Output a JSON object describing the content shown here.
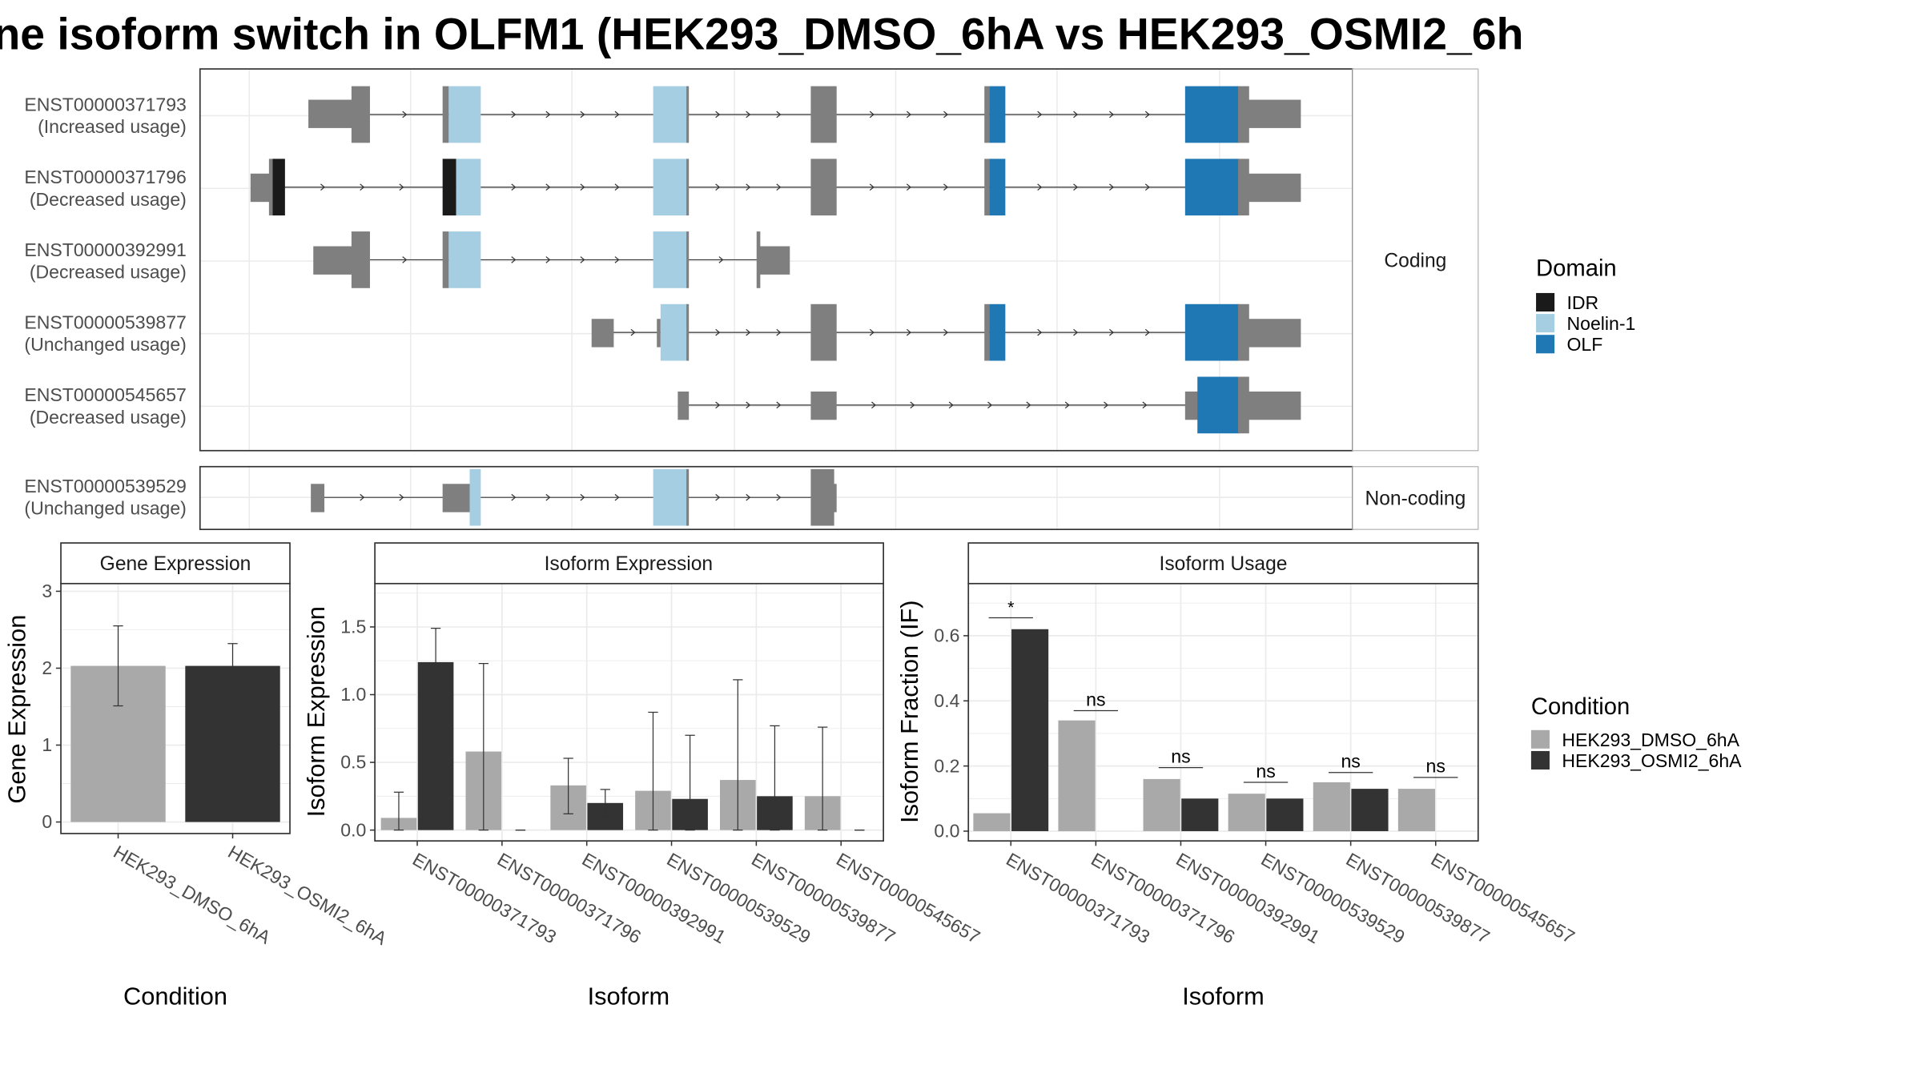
{
  "title": "ne isoform switch in OLFM1 (HEK293_DMSO_6hA vs HEK293_OSMI2_6h",
  "colors": {
    "idr": "#1a1a1a",
    "noelin": "#a6cee3",
    "olf": "#1f78b4",
    "exon": "#7f7f7f",
    "dmso": "#a9a9a9",
    "osmi": "#333333",
    "grid": "#ebebeb",
    "panel_border": "#333333",
    "strip_border": "#b3b3b3"
  },
  "structure": {
    "facets": [
      "Coding",
      "Non-coding"
    ],
    "transcripts": [
      {
        "id": "ENST00000371793",
        "usage": "(Increased usage)",
        "facet": "Coding"
      },
      {
        "id": "ENST00000371796",
        "usage": "(Decreased usage)",
        "facet": "Coding"
      },
      {
        "id": "ENST00000392991",
        "usage": "(Decreased usage)",
        "facet": "Coding"
      },
      {
        "id": "ENST00000539877",
        "usage": "(Unchanged usage)",
        "facet": "Coding"
      },
      {
        "id": "ENST00000545657",
        "usage": "(Decreased usage)",
        "facet": "Coding"
      },
      {
        "id": "ENST00000539529",
        "usage": "(Unchanged usage)",
        "facet": "Non-coding"
      }
    ]
  },
  "legends": {
    "domain": {
      "title": "Domain",
      "items": [
        "IDR",
        "Noelin-1",
        "OLF"
      ]
    },
    "condition": {
      "title": "Condition",
      "items": [
        "HEK293_DMSO_6hA",
        "HEK293_OSMI2_6hA"
      ]
    }
  },
  "chart_data": [
    {
      "type": "bar",
      "title": "Gene Expression",
      "xlabel": "Condition",
      "ylabel": "Gene Expression",
      "categories": [
        "HEK293_DMSO_6hA",
        "HEK293_OSMI2_6hA"
      ],
      "values": [
        2.03,
        2.03
      ],
      "error_low": [
        1.51,
        1.74
      ],
      "error_high": [
        2.55,
        2.32
      ],
      "ylim": [
        -0.15,
        3.1
      ],
      "yticks": [
        0,
        1,
        2,
        3
      ]
    },
    {
      "type": "bar",
      "title": "Isoform Expression",
      "xlabel": "Isoform",
      "ylabel": "Isoform Expression",
      "categories": [
        "ENST00000371793",
        "ENST00000371796",
        "ENST00000392991",
        "ENST00000539529",
        "ENST00000539877",
        "ENST00000545657"
      ],
      "series": [
        {
          "name": "HEK293_DMSO_6hA",
          "values": [
            0.09,
            0.58,
            0.33,
            0.29,
            0.37,
            0.25
          ],
          "error_low": [
            0,
            0,
            0.12,
            0,
            0,
            0
          ],
          "error_high": [
            0.28,
            1.23,
            0.53,
            0.87,
            1.11,
            0.76
          ]
        },
        {
          "name": "HEK293_OSMI2_6hA",
          "values": [
            1.24,
            0.0,
            0.2,
            0.23,
            0.25,
            0.0
          ],
          "error_low": [
            0.99,
            0,
            0.1,
            0,
            0,
            0
          ],
          "error_high": [
            1.49,
            0,
            0.3,
            0.7,
            0.77,
            0
          ]
        }
      ],
      "ylim": [
        -0.08,
        1.82
      ],
      "yticks": [
        0.0,
        0.5,
        1.0,
        1.5
      ]
    },
    {
      "type": "bar",
      "title": "Isoform Usage",
      "xlabel": "Isoform",
      "ylabel": "Isoform Fraction (IF)",
      "categories": [
        "ENST00000371793",
        "ENST00000371796",
        "ENST00000392991",
        "ENST00000539529",
        "ENST00000539877",
        "ENST00000545657"
      ],
      "series": [
        {
          "name": "HEK293_DMSO_6hA",
          "values": [
            0.055,
            0.34,
            0.16,
            0.115,
            0.15,
            0.13
          ]
        },
        {
          "name": "HEK293_OSMI2_6hA",
          "values": [
            0.62,
            0.0,
            0.1,
            0.1,
            0.13,
            0.0
          ]
        }
      ],
      "significance": [
        "*",
        "ns",
        "ns",
        "ns",
        "ns",
        "ns"
      ],
      "significance_y": [
        0.655,
        0.37,
        0.195,
        0.15,
        0.18,
        0.165
      ],
      "ylim": [
        -0.03,
        0.76
      ],
      "yticks": [
        0.0,
        0.2,
        0.4,
        0.6
      ]
    }
  ]
}
